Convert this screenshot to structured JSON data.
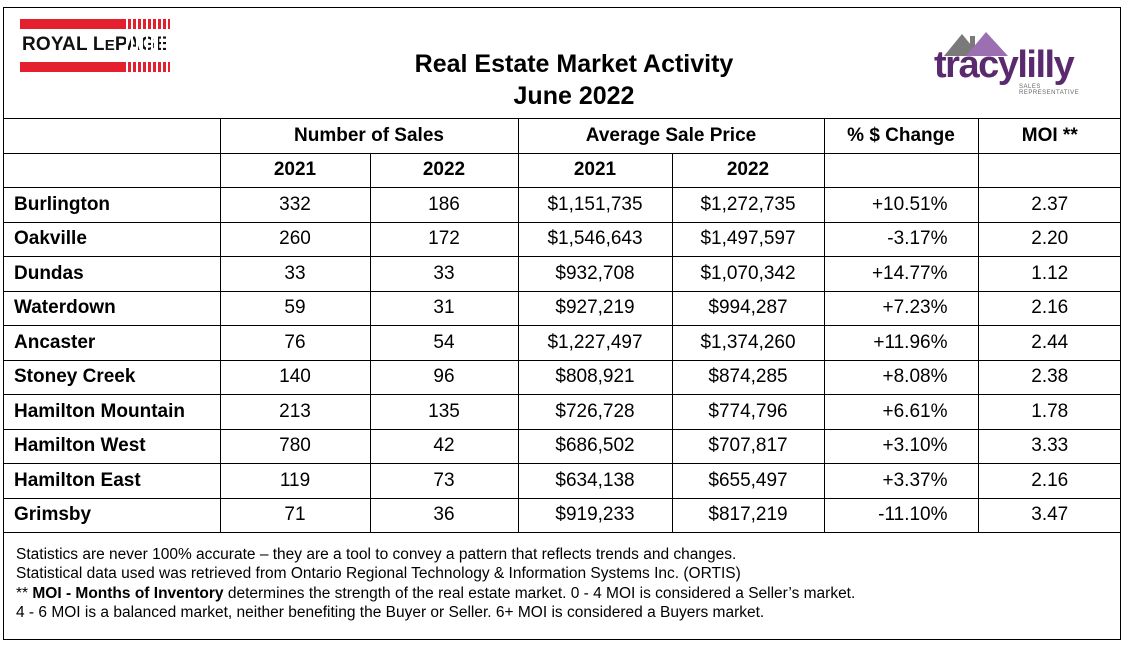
{
  "header": {
    "title_line1": "Real Estate Market Activity",
    "title_line2": "June 2022",
    "left_logo": {
      "text_main": "ROYAL L",
      "text_small": "E",
      "text_rest": "PAGE",
      "color": "#e5202e"
    },
    "right_logo": {
      "text": "tracylilly",
      "tagline": "SALES REPRESENTATIVE",
      "color": "#5b2a6e"
    }
  },
  "table": {
    "group_headers": {
      "sales": "Number of Sales",
      "price": "Average Sale Price",
      "change": "% $ Change",
      "moi": "MOI **"
    },
    "sub_headers": {
      "sales_2021": "2021",
      "sales_2022": "2022",
      "price_2021": "2021",
      "price_2022": "2022"
    },
    "rows": [
      {
        "city": "Burlington",
        "s21": "332",
        "s22": "186",
        "p21": "$1,151,735",
        "p22": "$1,272,735",
        "chg": "+10.51%",
        "moi": "2.37"
      },
      {
        "city": "Oakville",
        "s21": "260",
        "s22": "172",
        "p21": "$1,546,643",
        "p22": "$1,497,597",
        "chg": "-3.17%",
        "moi": "2.20"
      },
      {
        "city": "Dundas",
        "s21": "33",
        "s22": "33",
        "p21": "$932,708",
        "p22": "$1,070,342",
        "chg": "+14.77%",
        "moi": "1.12"
      },
      {
        "city": "Waterdown",
        "s21": "59",
        "s22": "31",
        "p21": "$927,219",
        "p22": "$994,287",
        "chg": "+7.23%",
        "moi": "2.16"
      },
      {
        "city": "Ancaster",
        "s21": "76",
        "s22": "54",
        "p21": "$1,227,497",
        "p22": "$1,374,260",
        "chg": "+11.96%",
        "moi": "2.44"
      },
      {
        "city": "Stoney Creek",
        "s21": "140",
        "s22": "96",
        "p21": "$808,921",
        "p22": "$874,285",
        "chg": "+8.08%",
        "moi": "2.38"
      },
      {
        "city": "Hamilton Mountain",
        "s21": "213",
        "s22": "135",
        "p21": "$726,728",
        "p22": "$774,796",
        "chg": "+6.61%",
        "moi": "1.78"
      },
      {
        "city": "Hamilton West",
        "s21": "780",
        "s22": "42",
        "p21": "$686,502",
        "p22": "$707,817",
        "chg": "+3.10%",
        "moi": "3.33"
      },
      {
        "city": "Hamilton East",
        "s21": "119",
        "s22": "73",
        "p21": "$634,138",
        "p22": "$655,497",
        "chg": "+3.37%",
        "moi": "2.16"
      },
      {
        "city": "Grimsby",
        "s21": "71",
        "s22": "36",
        "p21": "$919,233",
        "p22": "$817,219",
        "chg": "-11.10%",
        "moi": "3.47"
      }
    ]
  },
  "notes": {
    "line1": "Statistics are never 100% accurate – they are a tool to convey a pattern that reflects trends and changes.",
    "line2": "Statistical data used was retrieved from Ontario Regional Technology & Information Systems Inc. (ORTIS)",
    "line3_prefix": "** ",
    "line3_bold": "MOI - Months of Inventory",
    "line3_rest": " determines the strength of the real estate market. 0 - 4 MOI is considered a Seller’s market.",
    "line4": "4 - 6 MOI is a balanced market, neither benefiting the Buyer or Seller. 6+ MOI is considered a Buyers market."
  }
}
